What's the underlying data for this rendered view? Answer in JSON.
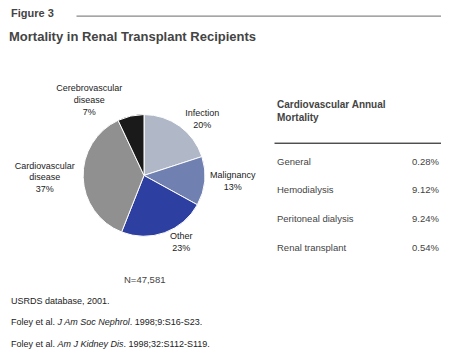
{
  "chart_data": {
    "type": "pie",
    "figure_label": "Figure 3",
    "title": "Mortality in Renal Transplant Recipients",
    "categories": [
      "Infection",
      "Malignancy",
      "Other",
      "Cardiovascular\ndisease",
      "Cerebrovascular\ndisease"
    ],
    "values": [
      20,
      13,
      23,
      37,
      7
    ],
    "value_labels": [
      "20%",
      "13%",
      "23%",
      "37%",
      "7%"
    ],
    "colors": [
      "#b0b8c8",
      "#7080b0",
      "#2d3fa0",
      "#909090",
      "#1a1a1a"
    ],
    "annotations": [
      "N=47,581"
    ],
    "table": {
      "title": "Cardiovascular Annual\nMortality",
      "rows": [
        {
          "label": "General",
          "value": "0.28%"
        },
        {
          "label": "Hemodialysis",
          "value": "9.12%"
        },
        {
          "label": "Peritoneal dialysis",
          "value": "9.24%"
        },
        {
          "label": "Renal transplant",
          "value": "0.54%"
        }
      ]
    },
    "footnotes": [
      {
        "text": "USRDS database, 2001."
      },
      {
        "text": "Foley et al. ",
        "italic": "J Am Soc Nephrol",
        "after": ". 1998;9:S16-S23."
      },
      {
        "text": "Foley et al. ",
        "italic": "Am J Kidney Dis",
        "after": ". 1998;32:S112-S119."
      }
    ]
  }
}
